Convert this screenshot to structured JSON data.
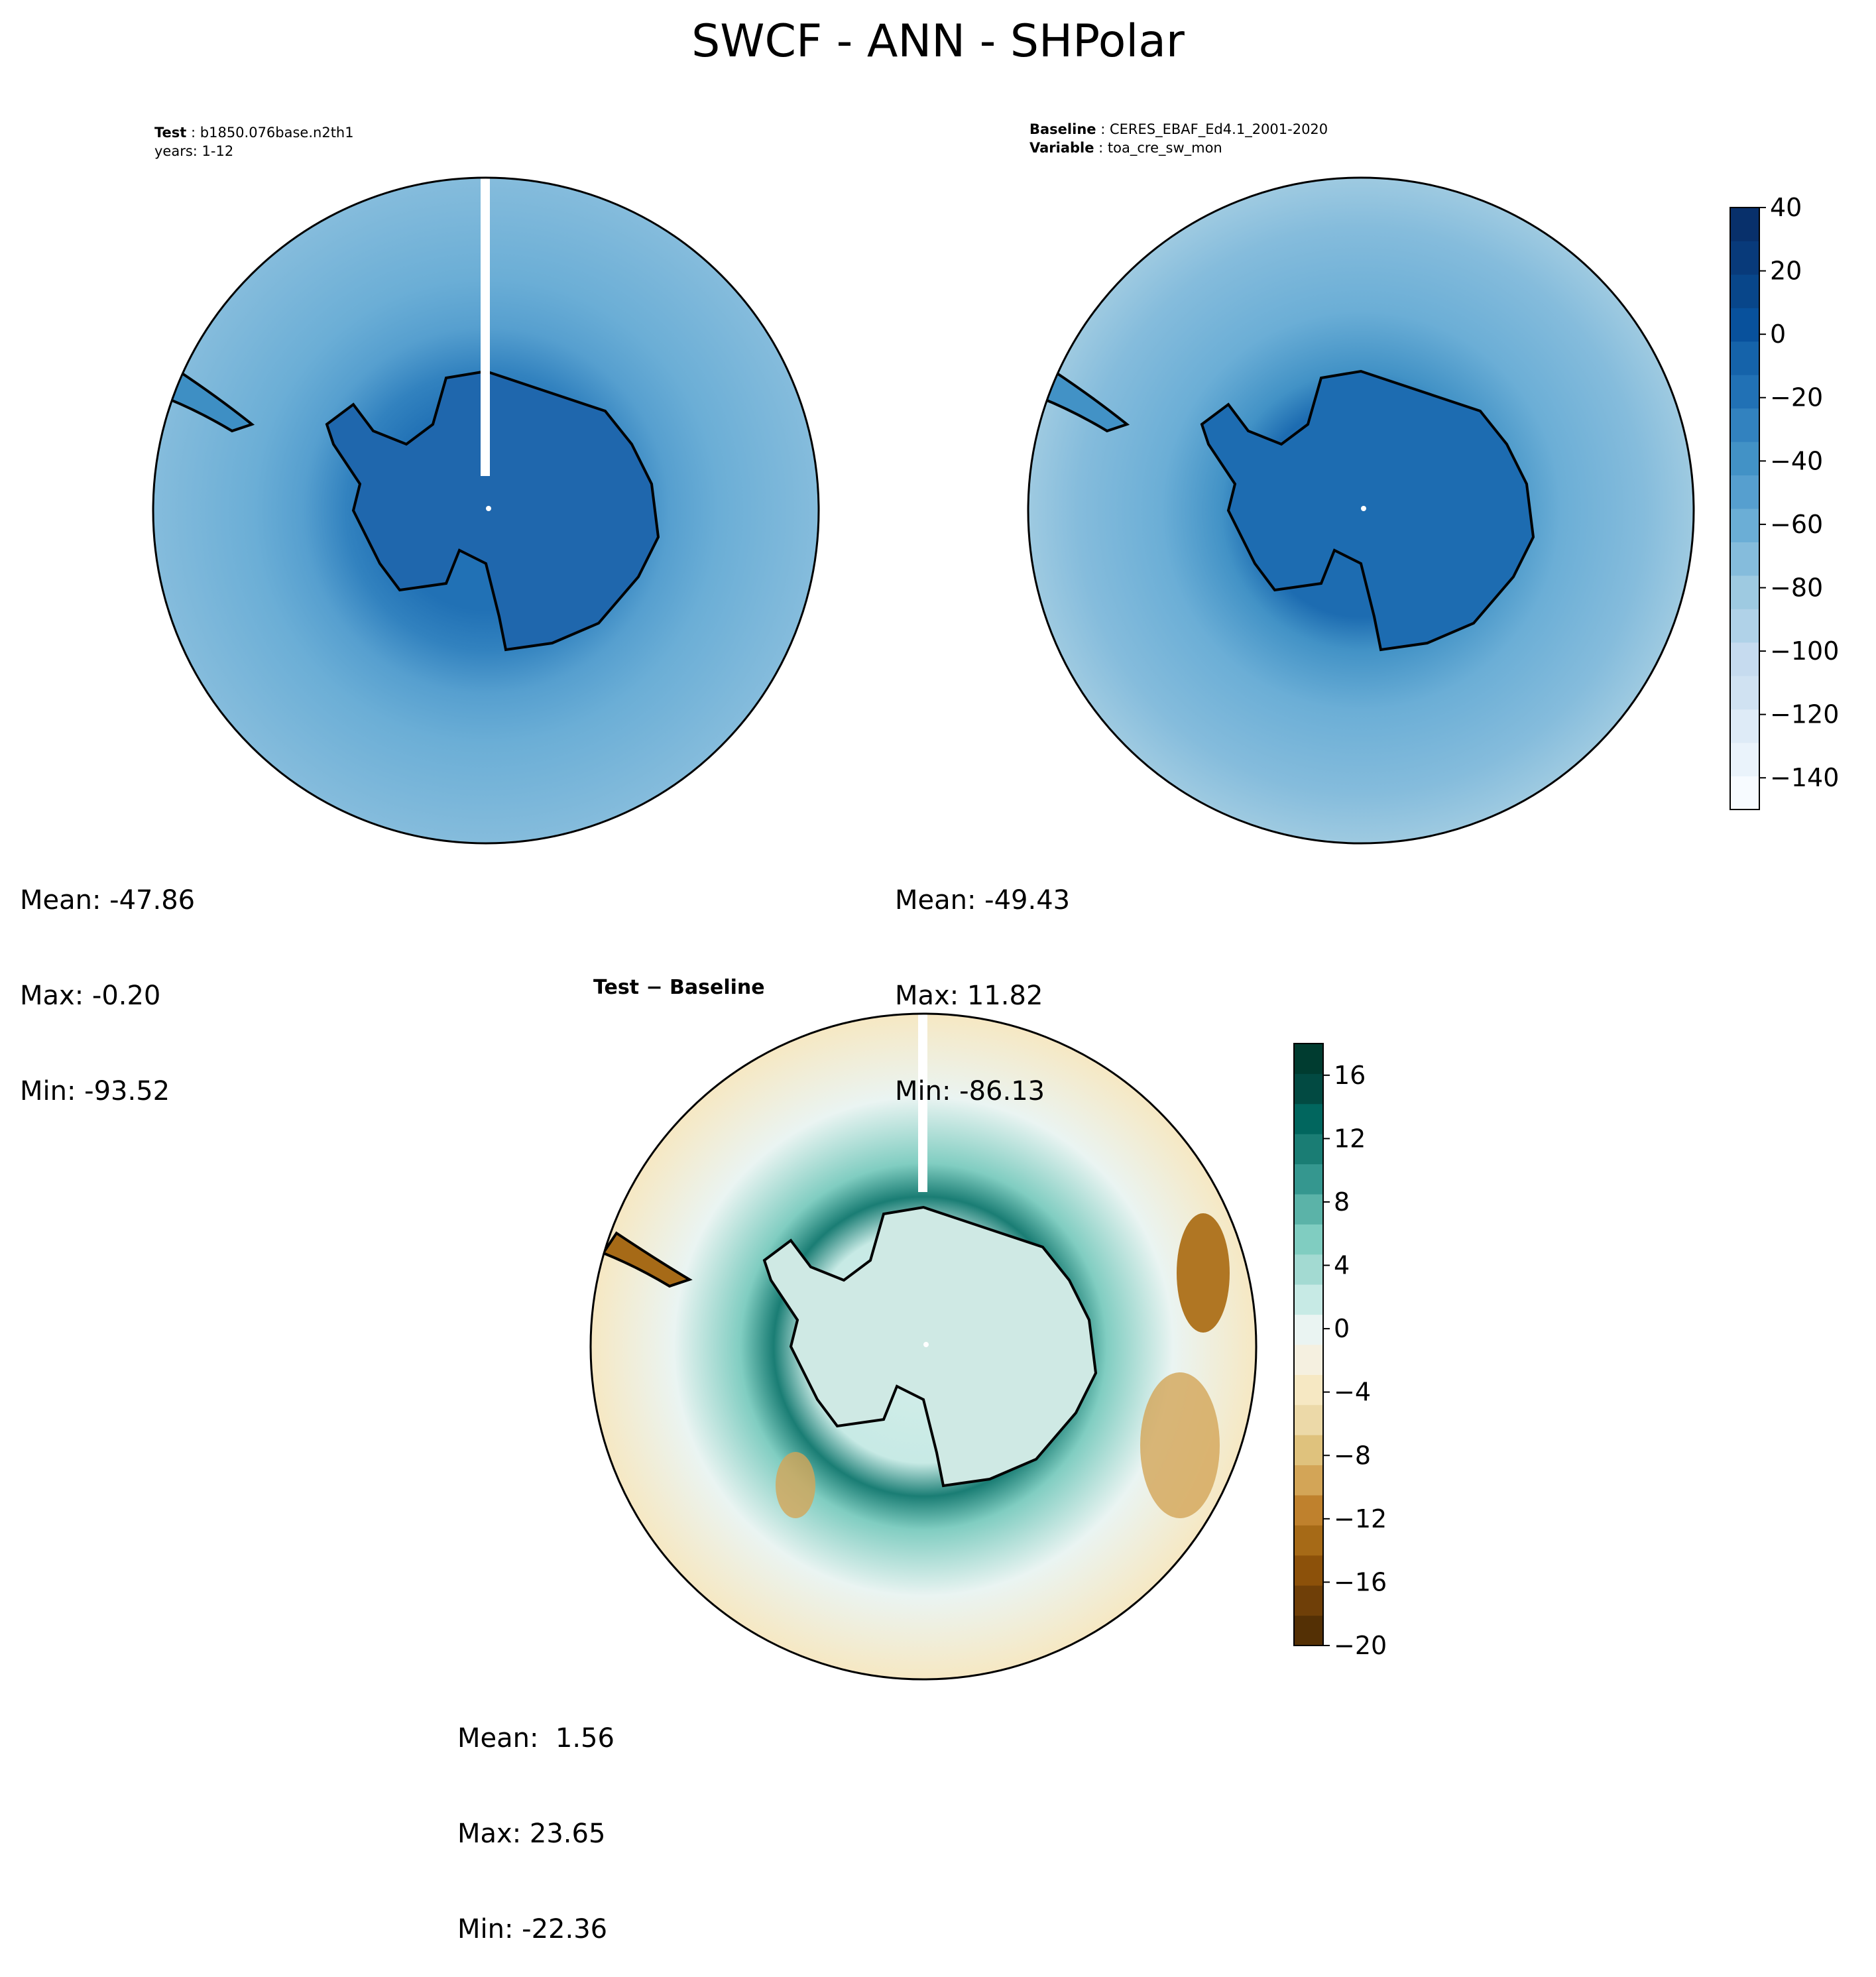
{
  "figure": {
    "title": "SWCF - ANN - SHPolar"
  },
  "panels": {
    "test": {
      "label1": "Test",
      "value1": "b1850.076base.n2th1",
      "line2": "years: 1-12",
      "stats": {
        "mean": "Mean: -47.86",
        "max": "Max: -0.20",
        "min": "Min: -93.52"
      }
    },
    "baseline": {
      "label1": "Baseline",
      "value1": "CERES_EBAF_Ed4.1_2001-2020",
      "label2": "Variable",
      "value2": "toa_cre_sw_mon",
      "stats": {
        "mean": "Mean: -49.43",
        "max": "Max: 11.82",
        "min": "Min: -86.13"
      }
    },
    "diff": {
      "title": "Test − Baseline",
      "stats": {
        "mean": "Mean:  1.56",
        "max": "Max: 23.65",
        "min": "Min: -22.36"
      }
    }
  },
  "chart_data": [
    {
      "type": "heatmap",
      "panel": "test",
      "projection": "south polar stereographic",
      "summary": {
        "mean": -47.86,
        "max": -0.2,
        "min": -93.52
      },
      "colormap": "Blues_r",
      "colorbar": {
        "ticks": [
          40,
          20,
          0,
          -20,
          -40,
          -60,
          -80,
          -100,
          -120,
          -140
        ],
        "range": [
          -150,
          40
        ]
      }
    },
    {
      "type": "heatmap",
      "panel": "baseline",
      "projection": "south polar stereographic",
      "summary": {
        "mean": -49.43,
        "max": 11.82,
        "min": -86.13
      },
      "colormap": "Blues_r",
      "colorbar": {
        "ticks": [
          40,
          20,
          0,
          -20,
          -40,
          -60,
          -80,
          -100,
          -120,
          -140
        ],
        "range": [
          -150,
          40
        ]
      }
    },
    {
      "type": "heatmap",
      "panel": "diff",
      "projection": "south polar stereographic",
      "summary": {
        "mean": 1.56,
        "max": 23.65,
        "min": -22.36
      },
      "colormap": "BrBG",
      "colorbar": {
        "ticks": [
          16,
          12,
          8,
          4,
          0,
          -4,
          -8,
          -12,
          -16,
          -20
        ],
        "range": [
          -20,
          18
        ]
      }
    }
  ],
  "colorbars": {
    "top": {
      "labels": [
        "40",
        "20",
        "0",
        "−20",
        "−40",
        "−60",
        "−80",
        "−100",
        "−120",
        "−140"
      ],
      "colors": [
        "#f7fbff",
        "#eaf3fb",
        "#deebf7",
        "#d0e2f2",
        "#c6dbef",
        "#b0d2e8",
        "#9ecae1",
        "#85bcdc",
        "#6baed6",
        "#569fcf",
        "#4292c6",
        "#3282bf",
        "#2171b5",
        "#1563aa",
        "#08519c",
        "#08468a",
        "#083a7a",
        "#08306b"
      ]
    },
    "bottom": {
      "labels": [
        "16",
        "12",
        "8",
        "4",
        "0",
        "−4",
        "−8",
        "−12",
        "−16",
        "−20"
      ],
      "colors": [
        "#543005",
        "#6f3f08",
        "#8c510a",
        "#a66a17",
        "#bf812d",
        "#d3a557",
        "#dfc27d",
        "#ecd9a8",
        "#f6e8c3",
        "#f5f0e0",
        "#eaf4f2",
        "#c7eae5",
        "#a3dad2",
        "#80cdc1",
        "#5bb3a8",
        "#35978f",
        "#1a7d74",
        "#01665e",
        "#024a42",
        "#003c30"
      ]
    }
  }
}
